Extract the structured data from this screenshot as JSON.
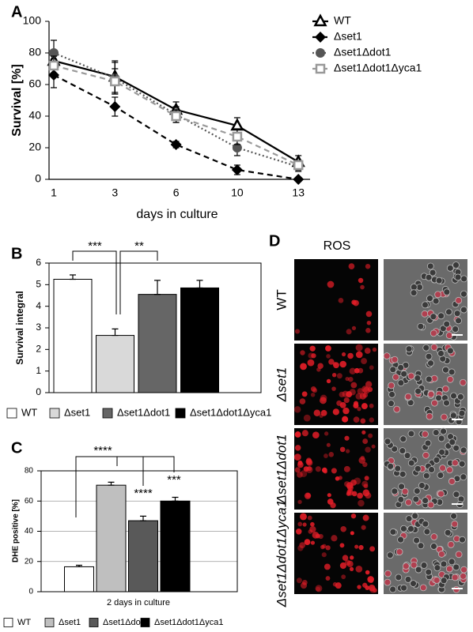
{
  "chart_data": [
    {
      "panel_label": "A",
      "type": "line",
      "ylabel": "Survival [%]",
      "xlabel": "days in culture",
      "categories": [
        "1",
        "3",
        "6",
        "10",
        "13"
      ],
      "ylim": [
        0,
        100
      ],
      "yticks": [
        0,
        20,
        40,
        60,
        80,
        100
      ],
      "grid": false,
      "series": [
        {
          "name": "WT",
          "color": "#000000",
          "marker": "triangle-open",
          "line_style": "solid",
          "values": [
            75,
            65,
            44,
            34,
            11
          ],
          "errors": [
            5,
            10,
            5,
            5,
            4
          ]
        },
        {
          "name": "Δset1",
          "color": "#000000",
          "marker": "diamond",
          "line_style": "dashed",
          "values": [
            66,
            46,
            22,
            6,
            0
          ],
          "errors": [
            8,
            6,
            2,
            3,
            1
          ]
        },
        {
          "name": "Δset1Δdot1",
          "color": "#555555",
          "marker": "circle",
          "line_style": "dotted",
          "values": [
            80,
            64,
            41,
            20,
            8
          ],
          "errors": [
            8,
            10,
            5,
            5,
            3
          ]
        },
        {
          "name": "Δset1Δdot1Δyca1",
          "color": "#999999",
          "marker": "square-open",
          "line_style": "dashed",
          "values": [
            72,
            62,
            40,
            27,
            9
          ],
          "errors": [
            6,
            8,
            4,
            5,
            3
          ]
        }
      ]
    },
    {
      "panel_label": "B",
      "type": "bar",
      "ylabel": "Survival integral",
      "categories": [
        "WT",
        "Δset1",
        "Δset1Δdot1",
        "Δset1Δdot1Δyca1"
      ],
      "values": [
        5.25,
        2.65,
        4.55,
        4.85
      ],
      "errors": [
        0.2,
        0.3,
        0.65,
        0.35
      ],
      "colors": [
        "#ffffff",
        "#d9d9d9",
        "#666666",
        "#000000"
      ],
      "ylim": [
        0,
        6
      ],
      "yticks": [
        0,
        1,
        2,
        3,
        4,
        5,
        6
      ],
      "grid": false,
      "annotations": [
        "***",
        "**"
      ]
    },
    {
      "panel_label": "C",
      "type": "bar",
      "ylabel": "DHE positive [%]",
      "xlabel": "2 days in culture",
      "categories": [
        "WT",
        "Δset1",
        "Δset1Δdot1",
        "Δset1Δdot1Δyca1"
      ],
      "values": [
        16.5,
        70.5,
        47,
        60
      ],
      "errors": [
        1,
        2,
        3,
        2.5
      ],
      "colors": [
        "#ffffff",
        "#bfbfbf",
        "#595959",
        "#000000"
      ],
      "ylim": [
        0,
        80
      ],
      "yticks": [
        0,
        20,
        40,
        60,
        80
      ],
      "grid": true,
      "annotations": [
        "****",
        "****",
        "***"
      ]
    }
  ],
  "images": {
    "panel_label": "D",
    "title": "ROS",
    "rows": [
      "WT",
      "Δset1",
      "Δset1Δdot1",
      "Δset1Δdot1Δyca1"
    ]
  }
}
